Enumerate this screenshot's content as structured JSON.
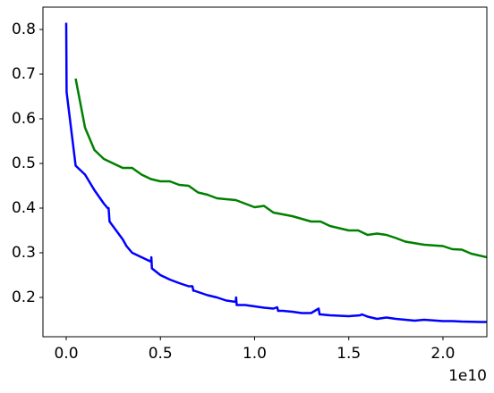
{
  "chart_data": {
    "type": "line",
    "x_offset_label": "1e10",
    "xlim": [
      -1235000000.0,
      22330000000.0
    ],
    "xticks": [
      {
        "value": 0,
        "label": "0.0"
      },
      {
        "value": 5000000000.0,
        "label": "0.5"
      },
      {
        "value": 10000000000.0,
        "label": "1.0"
      },
      {
        "value": 15000000000.0,
        "label": "1.5"
      },
      {
        "value": 20000000000.0,
        "label": "2.0"
      }
    ],
    "ylim": [
      0.112,
      0.85
    ],
    "yticks": [
      0.2,
      0.3,
      0.4,
      0.5,
      0.6,
      0.7,
      0.8
    ],
    "series": [
      {
        "color": "#0000ff",
        "x": [
          0,
          20000000.0,
          500000000.0,
          1000000000.0,
          1500000000.0,
          2000000000.0,
          2200000000.0,
          2250000000.0,
          2300000000.0,
          3000000000.0,
          3200000000.0,
          3500000000.0,
          4000000000.0,
          4500000000.0,
          4520000000.0,
          4550000000.0,
          5000000000.0,
          5500000000.0,
          6000000000.0,
          6500000000.0,
          6700000000.0,
          6750000000.0,
          6800000000.0,
          7500000000.0,
          8000000000.0,
          8500000000.0,
          9000000000.0,
          9020000000.0,
          9050000000.0,
          9500000000.0,
          10000000000.0,
          10500000000.0,
          11000000000.0,
          11200000000.0,
          11250000000.0,
          11500000000.0,
          12000000000.0,
          12500000000.0,
          13000000000.0,
          13400000000.0,
          13450000000.0,
          13500000000.0,
          14000000000.0,
          15000000000.0,
          15600000000.0,
          15700000000.0,
          16000000000.0,
          16500000000.0,
          17000000000.0,
          17500000000.0,
          18000000000.0,
          18500000000.0,
          19000000000.0,
          20000000000.0,
          20500000000.0,
          21000000000.0,
          22000000000.0,
          22330000000.0
        ],
        "values": [
          0.815,
          0.66,
          0.495,
          0.475,
          0.44,
          0.41,
          0.4,
          0.4,
          0.37,
          0.33,
          0.315,
          0.3,
          0.29,
          0.28,
          0.29,
          0.265,
          0.25,
          0.24,
          0.232,
          0.225,
          0.225,
          0.215,
          0.215,
          0.205,
          0.2,
          0.193,
          0.19,
          0.2,
          0.183,
          0.183,
          0.18,
          0.177,
          0.175,
          0.178,
          0.17,
          0.17,
          0.168,
          0.165,
          0.165,
          0.175,
          0.162,
          0.162,
          0.16,
          0.158,
          0.16,
          0.162,
          0.157,
          0.152,
          0.155,
          0.152,
          0.15,
          0.148,
          0.15,
          0.147,
          0.147,
          0.146,
          0.145,
          0.145
        ]
      },
      {
        "color": "#008000",
        "x": [
          500000000.0,
          1000000000.0,
          1500000000.0,
          2000000000.0,
          2500000000.0,
          3000000000.0,
          3500000000.0,
          4000000000.0,
          4500000000.0,
          5000000000.0,
          5500000000.0,
          6000000000.0,
          6500000000.0,
          7000000000.0,
          7500000000.0,
          8000000000.0,
          9000000000.0,
          9500000000.0,
          10000000000.0,
          10500000000.0,
          11000000000.0,
          12000000000.0,
          13000000000.0,
          13500000000.0,
          14000000000.0,
          15000000000.0,
          15500000000.0,
          16000000000.0,
          16500000000.0,
          17000000000.0,
          17500000000.0,
          18000000000.0,
          19000000000.0,
          20000000000.0,
          20500000000.0,
          21000000000.0,
          21500000000.0,
          22330000000.0
        ],
        "values": [
          0.69,
          0.58,
          0.53,
          0.51,
          0.5,
          0.49,
          0.49,
          0.475,
          0.465,
          0.46,
          0.46,
          0.452,
          0.45,
          0.435,
          0.43,
          0.422,
          0.418,
          0.41,
          0.402,
          0.405,
          0.39,
          0.382,
          0.37,
          0.37,
          0.36,
          0.35,
          0.35,
          0.34,
          0.343,
          0.34,
          0.333,
          0.325,
          0.318,
          0.315,
          0.308,
          0.307,
          0.298,
          0.29
        ]
      }
    ]
  }
}
